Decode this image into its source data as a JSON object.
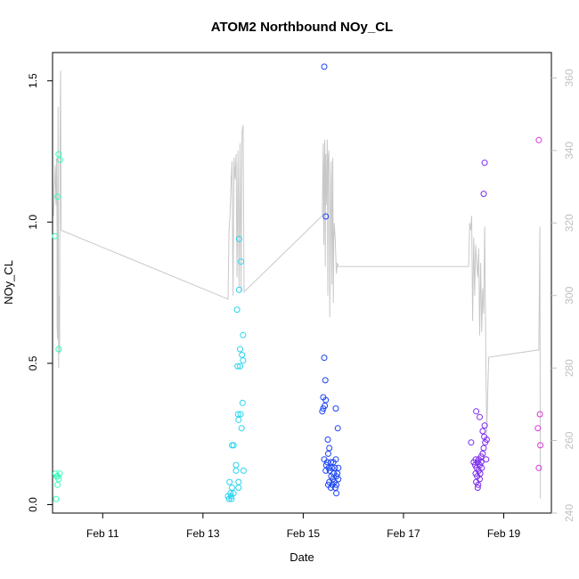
{
  "chart_data": {
    "type": "scatter",
    "title": "ATOM2 Northbound NOy_CL",
    "xlabel": "Date",
    "ylabel": "NOy_CL",
    "y2label": "",
    "grid": false,
    "legend": "none",
    "x_ticks": [
      "Feb 11",
      "Feb 13",
      "Feb 15",
      "Feb 17",
      "Feb 19"
    ],
    "y_ticks": [
      "0.0",
      "0.5",
      "1.0",
      "1.5"
    ],
    "y2_ticks": [
      "240",
      "260",
      "280",
      "300",
      "320",
      "340",
      "360"
    ],
    "xlim": [
      10.0,
      19.95
    ],
    "ylim": [
      -0.03,
      1.6
    ],
    "y2lim": [
      240.0,
      367.0
    ],
    "colors": {
      "points_day10": "#33ffbb",
      "points_day13": "#2ad4f0",
      "points_day15": "#1b44f5",
      "points_day18": "#7a2af0",
      "points_day19": "#dd33dd",
      "line": "#c8c8c8",
      "axis": "#000000",
      "axis_right": "#c0c0c0"
    },
    "series": [
      {
        "color_key": "points_day10",
        "points": [
          [
            10.05,
            0.95
          ],
          [
            10.1,
            1.09
          ],
          [
            10.12,
            1.24
          ],
          [
            10.15,
            1.22
          ],
          [
            10.12,
            0.55
          ],
          [
            10.06,
            0.11
          ],
          [
            10.1,
            0.1
          ],
          [
            10.14,
            0.11
          ],
          [
            10.08,
            0.1
          ],
          [
            10.12,
            0.09
          ],
          [
            10.1,
            0.07
          ],
          [
            10.07,
            0.02
          ]
        ]
      },
      {
        "color_key": "points_day13",
        "points": [
          [
            13.72,
            0.94
          ],
          [
            13.76,
            0.86
          ],
          [
            13.72,
            0.76
          ],
          [
            13.68,
            0.69
          ],
          [
            13.8,
            0.6
          ],
          [
            13.74,
            0.55
          ],
          [
            13.78,
            0.53
          ],
          [
            13.8,
            0.51
          ],
          [
            13.69,
            0.49
          ],
          [
            13.74,
            0.49
          ],
          [
            13.79,
            0.36
          ],
          [
            13.7,
            0.32
          ],
          [
            13.75,
            0.32
          ],
          [
            13.71,
            0.3
          ],
          [
            13.77,
            0.27
          ],
          [
            13.58,
            0.21
          ],
          [
            13.61,
            0.21
          ],
          [
            13.66,
            0.14
          ],
          [
            13.66,
            0.12
          ],
          [
            13.81,
            0.12
          ],
          [
            13.53,
            0.08
          ],
          [
            13.71,
            0.08
          ],
          [
            13.58,
            0.06
          ],
          [
            13.71,
            0.06
          ],
          [
            13.55,
            0.04
          ],
          [
            13.61,
            0.04
          ],
          [
            13.5,
            0.03
          ],
          [
            13.56,
            0.03
          ],
          [
            13.52,
            0.02
          ],
          [
            13.57,
            0.02
          ]
        ]
      },
      {
        "color_key": "points_day15",
        "points": [
          [
            15.42,
            1.55
          ],
          [
            15.45,
            1.02
          ],
          [
            15.42,
            0.52
          ],
          [
            15.44,
            0.44
          ],
          [
            15.4,
            0.38
          ],
          [
            15.45,
            0.37
          ],
          [
            15.43,
            0.35
          ],
          [
            15.4,
            0.34
          ],
          [
            15.65,
            0.34
          ],
          [
            15.38,
            0.33
          ],
          [
            15.69,
            0.27
          ],
          [
            15.49,
            0.23
          ],
          [
            15.52,
            0.2
          ],
          [
            15.5,
            0.18
          ],
          [
            15.42,
            0.16
          ],
          [
            15.48,
            0.15
          ],
          [
            15.55,
            0.15
          ],
          [
            15.6,
            0.15
          ],
          [
            15.65,
            0.16
          ],
          [
            15.46,
            0.14
          ],
          [
            15.51,
            0.13
          ],
          [
            15.57,
            0.13
          ],
          [
            15.63,
            0.13
          ],
          [
            15.7,
            0.13
          ],
          [
            15.45,
            0.12
          ],
          [
            15.53,
            0.12
          ],
          [
            15.61,
            0.11
          ],
          [
            15.68,
            0.11
          ],
          [
            15.56,
            0.1
          ],
          [
            15.66,
            0.1
          ],
          [
            15.59,
            0.09
          ],
          [
            15.7,
            0.09
          ],
          [
            15.52,
            0.08
          ],
          [
            15.62,
            0.08
          ],
          [
            15.5,
            0.07
          ],
          [
            15.58,
            0.07
          ],
          [
            15.66,
            0.07
          ],
          [
            15.55,
            0.06
          ],
          [
            15.64,
            0.06
          ],
          [
            15.66,
            0.04
          ]
        ]
      },
      {
        "color_key": "points_day18",
        "points": [
          [
            18.62,
            1.21
          ],
          [
            18.6,
            1.1
          ],
          [
            18.45,
            0.33
          ],
          [
            18.52,
            0.31
          ],
          [
            18.62,
            0.28
          ],
          [
            18.58,
            0.26
          ],
          [
            18.61,
            0.24
          ],
          [
            18.66,
            0.23
          ],
          [
            18.63,
            0.22
          ],
          [
            18.35,
            0.22
          ],
          [
            18.6,
            0.2
          ],
          [
            18.58,
            0.18
          ],
          [
            18.55,
            0.17
          ],
          [
            18.65,
            0.16
          ],
          [
            18.44,
            0.16
          ],
          [
            18.5,
            0.16
          ],
          [
            18.4,
            0.15
          ],
          [
            18.48,
            0.15
          ],
          [
            18.55,
            0.15
          ],
          [
            18.43,
            0.14
          ],
          [
            18.52,
            0.14
          ],
          [
            18.46,
            0.13
          ],
          [
            18.56,
            0.13
          ],
          [
            18.5,
            0.12
          ],
          [
            18.44,
            0.11
          ],
          [
            18.53,
            0.11
          ],
          [
            18.47,
            0.1
          ],
          [
            18.52,
            0.09
          ],
          [
            18.45,
            0.08
          ],
          [
            18.49,
            0.07
          ],
          [
            18.48,
            0.06
          ]
        ]
      },
      {
        "color_key": "points_day19",
        "points": [
          [
            19.7,
            1.29
          ],
          [
            19.72,
            0.32
          ],
          [
            19.68,
            0.27
          ],
          [
            19.73,
            0.21
          ],
          [
            19.7,
            0.13
          ]
        ]
      }
    ],
    "line_series": {
      "color_key": "line",
      "axis": "y2",
      "points": [
        [
          10.02,
          322
        ],
        [
          10.05,
          336
        ],
        [
          10.06,
          330
        ],
        [
          10.07,
          325
        ],
        [
          10.08,
          338
        ],
        [
          10.09,
          318
        ],
        [
          10.09,
          292
        ],
        [
          10.1,
          288
        ],
        [
          10.11,
          352
        ],
        [
          10.12,
          280
        ],
        [
          10.13,
          300
        ],
        [
          10.14,
          284
        ],
        [
          10.15,
          345
        ],
        [
          10.16,
          362
        ],
        [
          10.17,
          318
        ],
        [
          13.5,
          299
        ],
        [
          13.52,
          318
        ],
        [
          13.54,
          322
        ],
        [
          13.56,
          331
        ],
        [
          13.58,
          337
        ],
        [
          13.6,
          300
        ],
        [
          13.62,
          338
        ],
        [
          13.64,
          332
        ],
        [
          13.66,
          339
        ],
        [
          13.68,
          305
        ],
        [
          13.7,
          340
        ],
        [
          13.72,
          302
        ],
        [
          13.74,
          342
        ],
        [
          13.76,
          301
        ],
        [
          13.78,
          345
        ],
        [
          13.8,
          347
        ],
        [
          13.82,
          301
        ],
        [
          15.38,
          322
        ],
        [
          15.4,
          342
        ],
        [
          15.41,
          314
        ],
        [
          15.42,
          334
        ],
        [
          15.43,
          343
        ],
        [
          15.44,
          308
        ],
        [
          15.45,
          339
        ],
        [
          15.46,
          325
        ],
        [
          15.47,
          333
        ],
        [
          15.48,
          343
        ],
        [
          15.49,
          300
        ],
        [
          15.5,
          338
        ],
        [
          15.51,
          340
        ],
        [
          15.52,
          333
        ],
        [
          15.53,
          294
        ],
        [
          15.55,
          332
        ],
        [
          15.56,
          337
        ],
        [
          15.57,
          303
        ],
        [
          15.58,
          321
        ],
        [
          15.59,
          338
        ],
        [
          15.6,
          298
        ],
        [
          15.61,
          315
        ],
        [
          15.62,
          320
        ],
        [
          15.64,
          315
        ],
        [
          15.66,
          306
        ],
        [
          15.68,
          309
        ],
        [
          15.7,
          308
        ],
        [
          18.3,
          308
        ],
        [
          18.32,
          320
        ],
        [
          18.34,
          318
        ],
        [
          18.36,
          322
        ],
        [
          18.38,
          293
        ],
        [
          18.4,
          316
        ],
        [
          18.42,
          300
        ],
        [
          18.44,
          314
        ],
        [
          18.46,
          309
        ],
        [
          18.48,
          305
        ],
        [
          18.5,
          313
        ],
        [
          18.52,
          289
        ],
        [
          18.54,
          309
        ],
        [
          18.56,
          290
        ],
        [
          18.58,
          302
        ],
        [
          18.6,
          295
        ],
        [
          18.62,
          319
        ],
        [
          18.64,
          286
        ],
        [
          18.66,
          262
        ],
        [
          18.7,
          283
        ],
        [
          19.7,
          285
        ],
        [
          19.72,
          319
        ],
        [
          19.73,
          244
        ]
      ]
    }
  }
}
